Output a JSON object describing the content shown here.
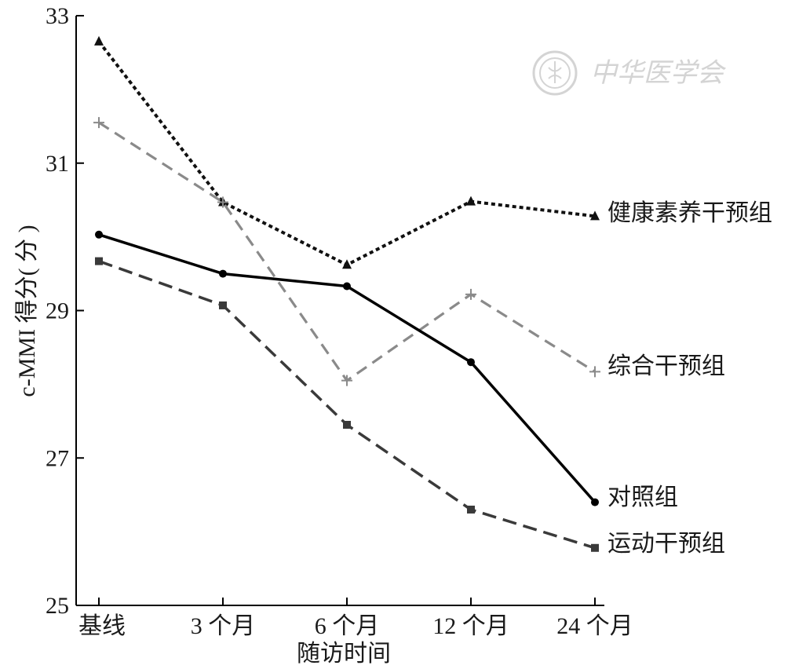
{
  "chart_data": {
    "type": "line",
    "xlabel": "随访时间",
    "ylabel": "c-MMI 得分( 分 )",
    "categories": [
      "基线",
      "3 个月",
      "6 个月",
      "12 个月",
      "24 个月"
    ],
    "ylim": [
      25,
      33
    ],
    "yticks": [
      25,
      27,
      29,
      31,
      33
    ],
    "grid": false,
    "legend": "none (series labels at line ends)",
    "series": [
      {
        "name": "健康素养干预组",
        "values": [
          32.65,
          30.47,
          29.62,
          30.48,
          30.28
        ],
        "color": "#111111",
        "dash": "dotted",
        "marker": "triangle"
      },
      {
        "name": "综合干预组",
        "values": [
          31.55,
          30.47,
          28.05,
          29.22,
          28.17
        ],
        "color": "#8a8a8a",
        "dash": "dashed",
        "marker": "plus"
      },
      {
        "name": "对照组",
        "values": [
          30.03,
          29.5,
          29.33,
          28.3,
          26.4
        ],
        "color": "#000000",
        "dash": "solid",
        "marker": "circle"
      },
      {
        "name": "运动干预组",
        "values": [
          29.67,
          29.07,
          27.45,
          26.3,
          25.78
        ],
        "color": "#3a3a3a",
        "dash": "long-dashed",
        "marker": "square"
      }
    ]
  },
  "watermark": {
    "text": "中华医学会",
    "icon": "society-seal-icon"
  }
}
